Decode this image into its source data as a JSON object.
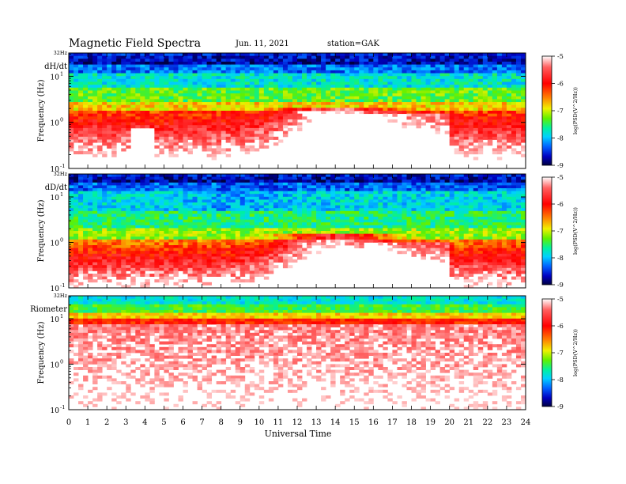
{
  "header": {
    "title": "Magnetic Field Spectra",
    "date": "Jun. 11, 2021",
    "station": "station=GAK"
  },
  "colors": {
    "colormap": [
      "#000050",
      "#0000d0",
      "#0070ff",
      "#00e0ff",
      "#00f080",
      "#80f000",
      "#f0f000",
      "#ff8000",
      "#ff0000",
      "#ff5050",
      "#ffffff"
    ]
  },
  "chart_data": [
    {
      "type": "heatmap",
      "panel_label": "dH/dt",
      "ylabel": "Frequency (Hz)",
      "top_freq_label": "32Hz",
      "y_ticks": [
        {
          "label": "10",
          "exp": "1",
          "value": 10
        },
        {
          "label": "10",
          "exp": "0",
          "value": 1
        },
        {
          "label": "10",
          "exp": "-1",
          "value": 0.1
        }
      ],
      "ylim": [
        0.1,
        32
      ],
      "y_scale": "log",
      "xlim": [
        0,
        24
      ],
      "colorbar": {
        "label": "log(PSD(V^2/Hz))",
        "ticks": [
          "-5",
          "-6",
          "-7",
          "-8",
          "-9"
        ],
        "range": [
          -9,
          -5
        ]
      }
    },
    {
      "type": "heatmap",
      "panel_label": "dD/dt",
      "ylabel": "Frequency (Hz)",
      "top_freq_label": "32Hz",
      "y_ticks": [
        {
          "label": "10",
          "exp": "1",
          "value": 10
        },
        {
          "label": "10",
          "exp": "0",
          "value": 1
        },
        {
          "label": "10",
          "exp": "-1",
          "value": 0.1
        }
      ],
      "ylim": [
        0.1,
        32
      ],
      "y_scale": "log",
      "xlim": [
        0,
        24
      ],
      "colorbar": {
        "label": "log(PSD(V^2/Hz))",
        "ticks": [
          "-5",
          "-6",
          "-7",
          "-8",
          "-9"
        ],
        "range": [
          -9,
          -5
        ]
      }
    },
    {
      "type": "heatmap",
      "panel_label": "Riometer",
      "ylabel": "Frequency (Hz)",
      "top_freq_label": "32Hz",
      "y_ticks": [
        {
          "label": "10",
          "exp": "1",
          "value": 10
        },
        {
          "label": "10",
          "exp": "0",
          "value": 1
        },
        {
          "label": "10",
          "exp": "-1",
          "value": 0.1
        }
      ],
      "ylim": [
        0.1,
        32
      ],
      "y_scale": "log",
      "xlim": [
        0,
        24
      ],
      "xlabel": "Universal Time",
      "x_ticks": [
        0,
        1,
        2,
        3,
        4,
        5,
        6,
        7,
        8,
        9,
        10,
        11,
        12,
        13,
        14,
        15,
        16,
        17,
        18,
        19,
        20,
        21,
        22,
        23,
        24
      ],
      "colorbar": {
        "label": "log(PSD(V^2/Hz))",
        "ticks": [
          "-5",
          "-6",
          "-7",
          "-8",
          "-9"
        ],
        "range": [
          -9,
          -5
        ]
      }
    }
  ]
}
